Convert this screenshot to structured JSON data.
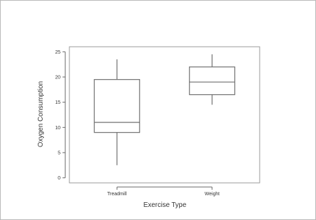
{
  "chart_data": {
    "type": "boxplot",
    "title": "",
    "xlabel": "Exercise Type",
    "ylabel": "Oxygen Consumption",
    "ylim": [
      -1,
      26
    ],
    "yticks": [
      0,
      5,
      10,
      15,
      20,
      25
    ],
    "grid": false,
    "categories": [
      "Treadmill",
      "Weight"
    ],
    "boxes": [
      {
        "category": "Treadmill",
        "min": 2.5,
        "q1": 9,
        "median": 11,
        "q3": 19.5,
        "max": 23.5
      },
      {
        "category": "Weight",
        "min": 14.5,
        "q1": 16.5,
        "median": 19,
        "q3": 22,
        "max": 24.5
      }
    ],
    "colors": {
      "box_stroke": "#6e6e6e",
      "axis": "#666666",
      "frame": "#999999"
    }
  }
}
